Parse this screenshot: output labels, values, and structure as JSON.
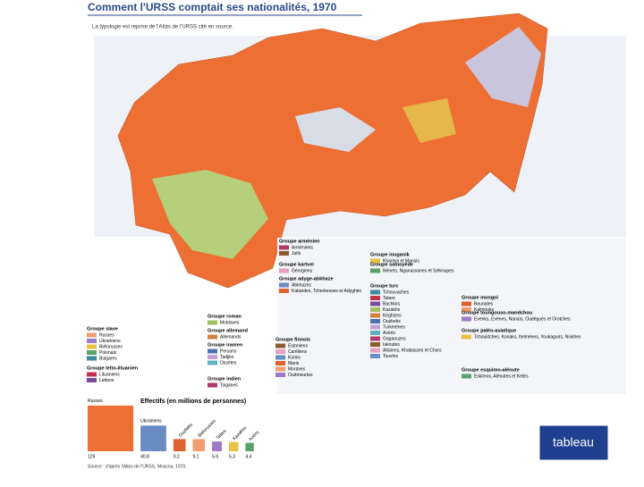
{
  "header": {
    "title": "Comment l'URSS comptait ses nationalités, 1970",
    "subtitle": "La typologie est reprise de l'Atlas de l'URSS cité en source."
  },
  "legend_groups": [
    {
      "title": "Groupe arménien",
      "items": [
        "Arméniens",
        "Juifs"
      ]
    },
    {
      "title": "Groupe kartvel",
      "items": [
        "Géorgiens"
      ]
    },
    {
      "title": "Groupe adyge-abkhaze",
      "items": [
        "Abkhazes",
        "Kabardes, Tcherkesses et Adyghés"
      ]
    },
    {
      "title": "Groupe slave",
      "items": [
        "Russes",
        "Ukrainiens",
        "Biélorusses",
        "Polonais",
        "Bulgares"
      ]
    },
    {
      "title": "Groupe letto-lituanien",
      "items": [
        "Lituaniens",
        "Lettons"
      ]
    },
    {
      "title": "Groupe roman",
      "items": [
        "Moldaves"
      ]
    },
    {
      "title": "Groupe allemand",
      "items": [
        "Allemands"
      ]
    },
    {
      "title": "Groupe iranien",
      "items": [
        "Persans",
        "Tadjiks",
        "Ossètes"
      ]
    },
    {
      "title": "Groupe indien",
      "items": [
        "Tsiganes"
      ]
    },
    {
      "title": "Groupe finnois",
      "items": [
        "Estoniens",
        "Caréliens",
        "Komis",
        "Maris",
        "Mordves",
        "Oudmourtes"
      ]
    },
    {
      "title": "Groupe iouganik",
      "items": [
        "Khantys et Mansis"
      ]
    },
    {
      "title": "Groupe samoyède",
      "items": [
        "Nénets, Nganassanes et Selkoupes"
      ]
    },
    {
      "title": "Groupe turc",
      "items": [
        "Tchouvaches",
        "Tatars",
        "Bachkirs",
        "Kazakhs",
        "Kirghizes",
        "Ouzbeks",
        "Turkmènes",
        "Azéris",
        "Gagaouzes",
        "Iakoutes",
        "Altaïens, Khakasses et Chors",
        "Touvins"
      ]
    },
    {
      "title": "Groupe mongol",
      "items": [
        "Bouriates",
        "Kalmouks"
      ]
    },
    {
      "title": "Groupe toungouso-mandchou",
      "items": [
        "Evenks, Evènes, Nanaïs, Oudègués et Orotches"
      ]
    },
    {
      "title": "Groupe paléo-asiatique",
      "items": [
        "Tchouktches, Koriaks, Itelmènes, Youkaguirs, Nivkhes"
      ]
    },
    {
      "title": "Groupe esquimo-aléoute",
      "items": [
        "Eskimos, Aléoutes et Ketes"
      ]
    }
  ],
  "effectifs": {
    "title": "Effectifs (en millions de personnes)",
    "items": [
      {
        "name": "Russes",
        "value": "129"
      },
      {
        "name": "Ukrainiens",
        "value": "40.8"
      },
      {
        "name": "Ouzbeks",
        "value": "9.2"
      },
      {
        "name": "Biélorusses",
        "value": "9.1"
      },
      {
        "name": "Tatars",
        "value": "5.9"
      },
      {
        "name": "Kazakhs",
        "value": "5.3"
      },
      {
        "name": "Azéris",
        "value": "4.4"
      }
    ]
  },
  "source": "Source : d'après l'Atlas de l'URSS, Moscou, 1970.",
  "button": {
    "label": "tableau"
  }
}
